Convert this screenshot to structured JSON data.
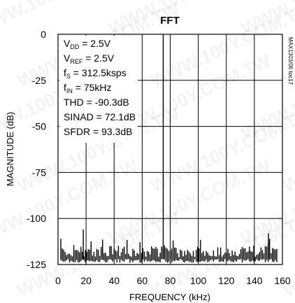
{
  "chart_data": {
    "type": "line",
    "title": "FFT",
    "xlabel": "FREQUENCY (kHz)",
    "ylabel": "MAGNITUDE (dB)",
    "xlim": [
      0,
      160
    ],
    "ylim": [
      -125,
      0
    ],
    "x_ticks": [
      "0",
      "20",
      "40",
      "60",
      "80",
      "100",
      "120",
      "140",
      "160"
    ],
    "y_ticks": [
      "0",
      "-25",
      "-50",
      "-75",
      "-100",
      "-125"
    ],
    "grid": true,
    "series": [
      {
        "noise_floor_db": [
          -115,
          -122
        ],
        "peaks": [
          {
            "x": 75,
            "y": 0
          },
          {
            "x": 18,
            "y": -106
          },
          {
            "x": 150,
            "y": -108
          }
        ]
      }
    ],
    "annotations": [
      {
        "base": "V",
        "sub": "DD",
        "rest": " = 2.5V"
      },
      {
        "base": "V",
        "sub": "REF",
        "rest": " = 2.5V"
      },
      {
        "base": "f",
        "sub": "S",
        "rest": " = 312.5ksps"
      },
      {
        "base": "f",
        "sub": "IN",
        "rest": " = 75kHz"
      },
      {
        "base": "THD = -90.3dB",
        "sub": "",
        "rest": ""
      },
      {
        "base": "SINAD = 72.1dB",
        "sub": "",
        "rest": ""
      },
      {
        "base": "SFDR = 93.3dB",
        "sub": "",
        "rest": ""
      }
    ],
    "figure_id": "MAX1303/06 toc17",
    "watermark": "WWW.100Y.COM.TW"
  }
}
